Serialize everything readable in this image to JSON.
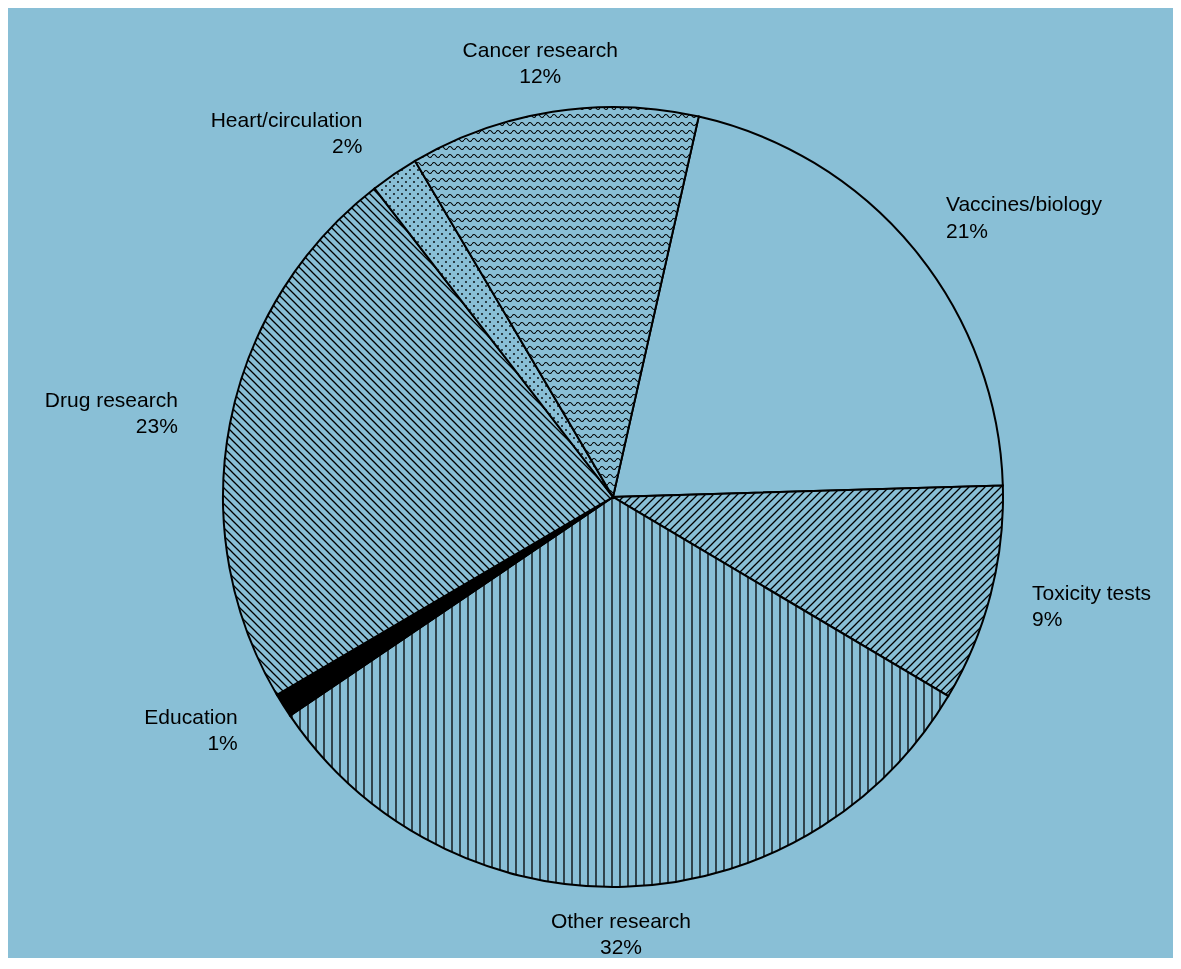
{
  "chart_data": {
    "type": "pie",
    "categories": [
      "Vaccines/biology",
      "Toxicity tests",
      "Other research",
      "Education",
      "Drug research",
      "Heart/circulation",
      "Cancer research"
    ],
    "values": [
      21,
      9,
      32,
      1,
      23,
      2,
      12
    ],
    "value_labels": [
      "21%",
      "9%",
      "32%",
      "1%",
      "23%",
      "2%",
      "12%"
    ],
    "colors": [
      "#89bfd6",
      "#000000",
      "#000000",
      "#000000",
      "#000000",
      "#000000",
      "#000000"
    ]
  }
}
